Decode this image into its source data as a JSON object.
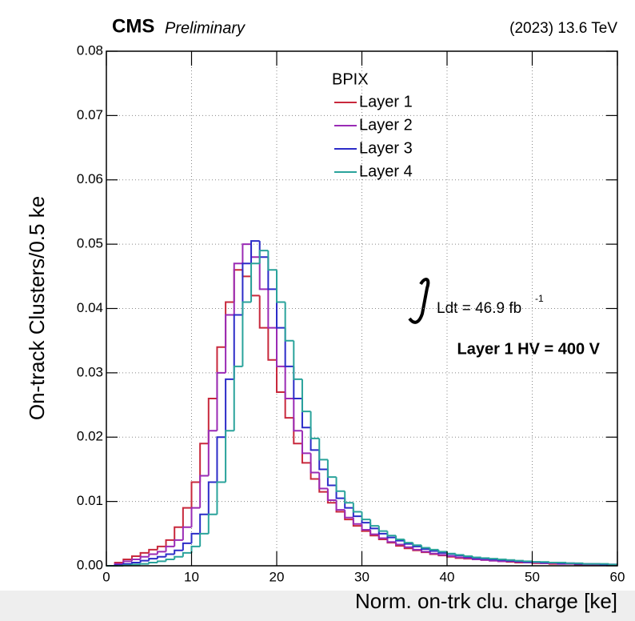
{
  "chart_data": {
    "type": "histogram",
    "title": "CMS",
    "subtitle": "Preliminary",
    "energy_label": "(2023) 13.6 TeV",
    "x_label": "Norm. on-trk clu. charge [ke]",
    "y_label": "On-track Clusters/0.5 ke",
    "legend_title": "BPIX",
    "lumi_label": "Ldt = 46.9 fb",
    "lumi_exponent": "-1",
    "annotation": "Layer 1 HV = 400 V",
    "grid": true,
    "xlim": [
      0,
      60
    ],
    "ylim": [
      0,
      0.08
    ],
    "xticks": [
      0,
      10,
      20,
      30,
      40,
      50,
      60
    ],
    "yticks": [
      {
        "value": 0,
        "label": "0.00"
      },
      0.01,
      0.02,
      0.03,
      0.04,
      0.05,
      0.06,
      0.07,
      0.08
    ],
    "bins": [
      0,
      1,
      2,
      3,
      4,
      5,
      6,
      7,
      8,
      9,
      10,
      11,
      12,
      13,
      14,
      15,
      16,
      17,
      18,
      19,
      20,
      21,
      22,
      23,
      24,
      25,
      26,
      27,
      28,
      29,
      30,
      31,
      32,
      33,
      34,
      35,
      36,
      37,
      38,
      39,
      40,
      41,
      42,
      43,
      44,
      45,
      46,
      47,
      48,
      49,
      50,
      51,
      52,
      53,
      54,
      55,
      56,
      57,
      58,
      59,
      60
    ],
    "series": [
      {
        "name": "Layer 1",
        "color": "#c8283c",
        "values": [
          0,
          0.0005,
          0.001,
          0.0015,
          0.002,
          0.0025,
          0.003,
          0.004,
          0.006,
          0.009,
          0.013,
          0.019,
          0.026,
          0.034,
          0.041,
          0.046,
          0.045,
          0.042,
          0.037,
          0.032,
          0.027,
          0.023,
          0.019,
          0.016,
          0.0135,
          0.0115,
          0.0098,
          0.0084,
          0.0072,
          0.0062,
          0.0054,
          0.0047,
          0.0041,
          0.0036,
          0.0031,
          0.0027,
          0.0024,
          0.0021,
          0.0018,
          0.0016,
          0.0014,
          0.0012,
          0.0011,
          0.001,
          0.0009,
          0.0008,
          0.0007,
          0.0006,
          0.0005,
          0.0005,
          0.0004,
          0.0004,
          0.0003,
          0.0003,
          0.0003,
          0.0002,
          0.0002,
          0.0002,
          0.0002,
          0.0001
        ]
      },
      {
        "name": "Layer 2",
        "color": "#9a2bb5",
        "values": [
          0,
          0.0003,
          0.0007,
          0.001,
          0.0014,
          0.0018,
          0.0022,
          0.003,
          0.004,
          0.006,
          0.009,
          0.014,
          0.021,
          0.03,
          0.039,
          0.047,
          0.05,
          0.048,
          0.043,
          0.037,
          0.031,
          0.026,
          0.021,
          0.0175,
          0.0145,
          0.012,
          0.0102,
          0.0087,
          0.0075,
          0.0065,
          0.0056,
          0.0049,
          0.0043,
          0.0037,
          0.0033,
          0.0029,
          0.0025,
          0.0022,
          0.0019,
          0.0017,
          0.0015,
          0.0013,
          0.0012,
          0.001,
          0.0009,
          0.0008,
          0.0007,
          0.0007,
          0.0006,
          0.0005,
          0.0005,
          0.0004,
          0.0004,
          0.0003,
          0.0003,
          0.0003,
          0.0002,
          0.0002,
          0.0002,
          0.0002
        ]
      },
      {
        "name": "Layer 3",
        "color": "#2c2cc8",
        "values": [
          0,
          0.0001,
          0.0003,
          0.0005,
          0.0008,
          0.0011,
          0.0014,
          0.0018,
          0.0024,
          0.0035,
          0.005,
          0.008,
          0.013,
          0.02,
          0.029,
          0.039,
          0.047,
          0.0505,
          0.048,
          0.043,
          0.037,
          0.031,
          0.026,
          0.0215,
          0.018,
          0.015,
          0.0125,
          0.0105,
          0.009,
          0.0077,
          0.0067,
          0.0058,
          0.005,
          0.0044,
          0.0039,
          0.0034,
          0.003,
          0.0026,
          0.0023,
          0.002,
          0.0018,
          0.0016,
          0.0014,
          0.0012,
          0.0011,
          0.001,
          0.0009,
          0.0008,
          0.0007,
          0.0006,
          0.0006,
          0.0005,
          0.0005,
          0.0004,
          0.0004,
          0.0003,
          0.0003,
          0.0003,
          0.0002,
          0.0002
        ]
      },
      {
        "name": "Layer 4",
        "color": "#2aa39b",
        "values": [
          0,
          0,
          0.0001,
          0.0002,
          0.0003,
          0.0005,
          0.0007,
          0.001,
          0.0014,
          0.002,
          0.003,
          0.005,
          0.008,
          0.013,
          0.021,
          0.031,
          0.041,
          0.047,
          0.049,
          0.046,
          0.041,
          0.035,
          0.029,
          0.024,
          0.0198,
          0.0165,
          0.0138,
          0.0116,
          0.0098,
          0.0084,
          0.0072,
          0.0062,
          0.0054,
          0.0047,
          0.0041,
          0.0036,
          0.0032,
          0.0028,
          0.0025,
          0.0022,
          0.0019,
          0.0017,
          0.0015,
          0.0013,
          0.0012,
          0.0011,
          0.001,
          0.0009,
          0.0008,
          0.0007,
          0.0006,
          0.0006,
          0.0005,
          0.0005,
          0.0004,
          0.0004,
          0.0003,
          0.0003,
          0.0003,
          0.0002
        ]
      }
    ]
  }
}
